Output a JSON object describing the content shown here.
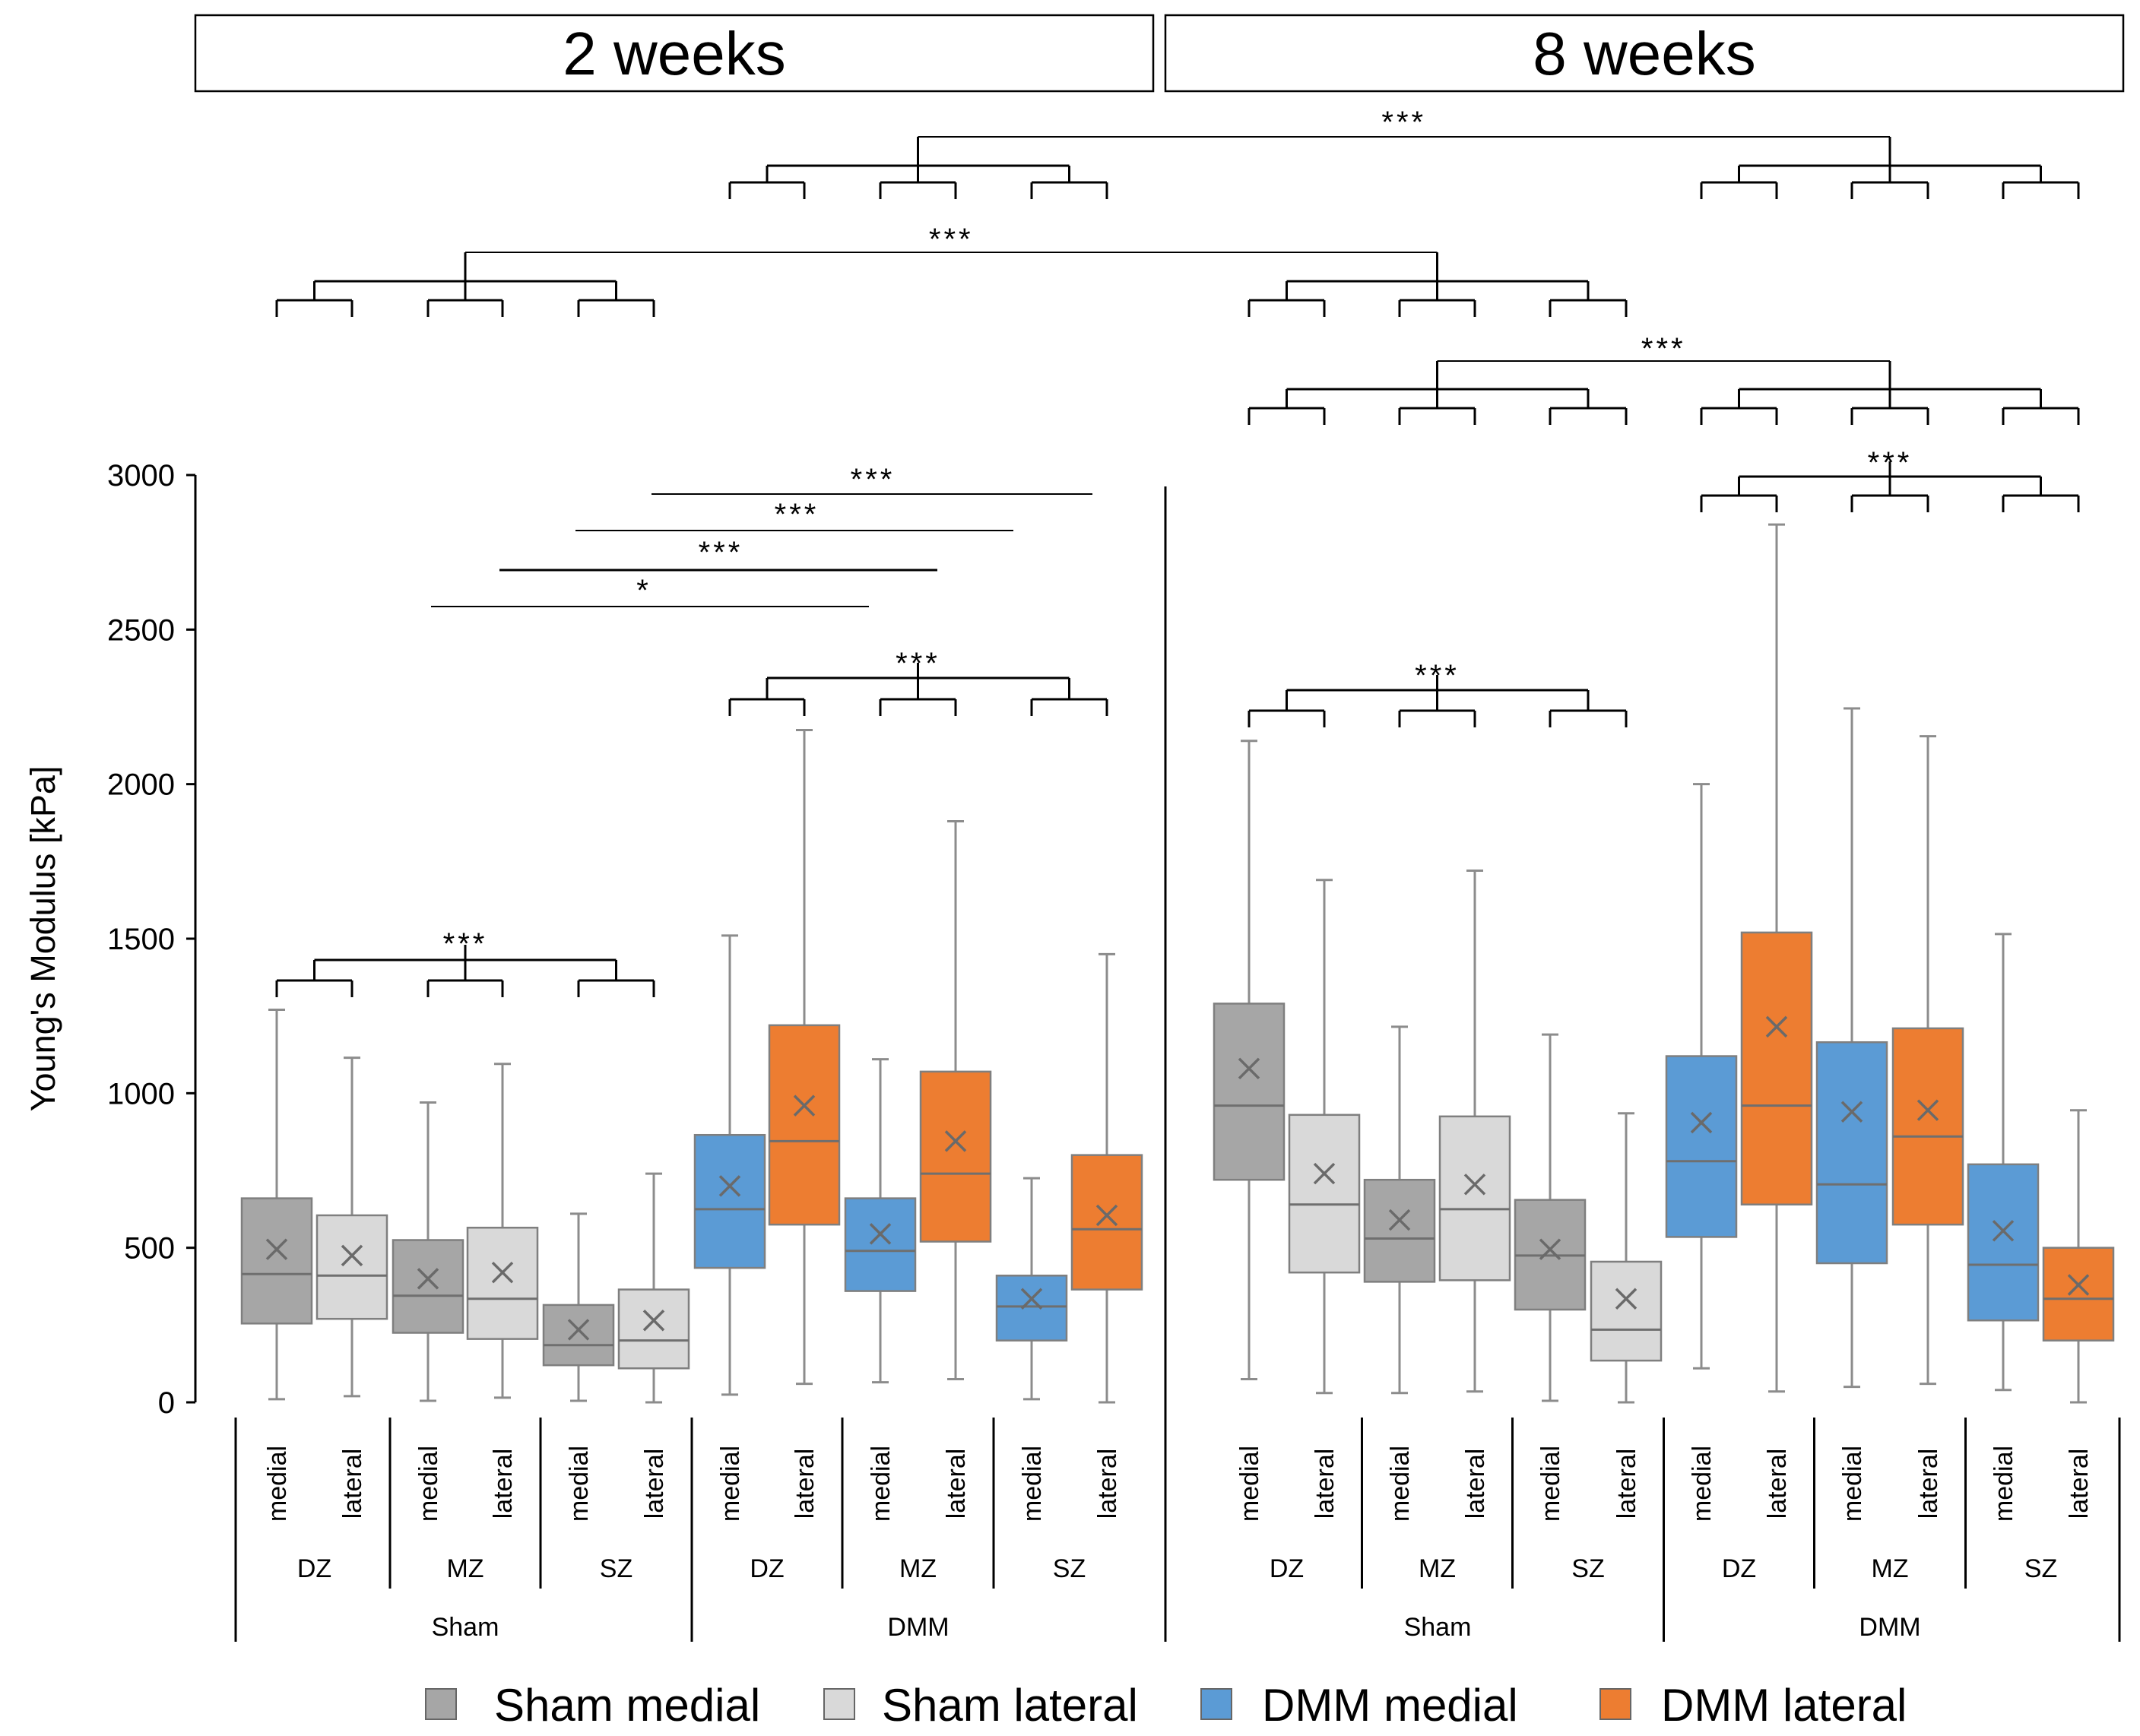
{
  "chart_data": {
    "type": "box",
    "ylabel": "Young's Modulus [kPa]",
    "ylim": [
      0,
      3000
    ],
    "yticks": [
      0,
      500,
      1000,
      1500,
      2000,
      2500,
      3000
    ],
    "panels": [
      "2 weeks",
      "8 weeks"
    ],
    "series_colors": {
      "Sham medial": "#a6a6a6",
      "Sham lateral": "#d9d9d9",
      "DMM medial": "#5b9bd5",
      "DMM lateral": "#ed7d31"
    },
    "legend": [
      {
        "label": "Sham medial",
        "color": "#a6a6a6"
      },
      {
        "label": "Sham lateral",
        "color": "#d9d9d9"
      },
      {
        "label": "DMM medial",
        "color": "#5b9bd5"
      },
      {
        "label": "DMM lateral",
        "color": "#ed7d31"
      }
    ],
    "boxes": [
      {
        "panel": "2 weeks",
        "group": "Sham",
        "zone": "DZ",
        "side": "medial",
        "series": "Sham medial",
        "min": 10,
        "q1": 255,
        "median": 415,
        "q3": 660,
        "max": 1270,
        "mean": 495
      },
      {
        "panel": "2 weeks",
        "group": "Sham",
        "zone": "DZ",
        "side": "lateral",
        "series": "Sham lateral",
        "min": 20,
        "q1": 270,
        "median": 410,
        "q3": 605,
        "max": 1115,
        "mean": 475
      },
      {
        "panel": "2 weeks",
        "group": "Sham",
        "zone": "MZ",
        "side": "medial",
        "series": "Sham medial",
        "min": 5,
        "q1": 225,
        "median": 345,
        "q3": 525,
        "max": 970,
        "mean": 400
      },
      {
        "panel": "2 weeks",
        "group": "Sham",
        "zone": "MZ",
        "side": "lateral",
        "series": "Sham lateral",
        "min": 15,
        "q1": 205,
        "median": 335,
        "q3": 565,
        "max": 1095,
        "mean": 420
      },
      {
        "panel": "2 weeks",
        "group": "Sham",
        "zone": "SZ",
        "side": "medial",
        "series": "Sham medial",
        "min": 5,
        "q1": 120,
        "median": 185,
        "q3": 315,
        "max": 610,
        "mean": 235
      },
      {
        "panel": "2 weeks",
        "group": "Sham",
        "zone": "SZ",
        "side": "lateral",
        "series": "Sham lateral",
        "min": 0,
        "q1": 110,
        "median": 200,
        "q3": 365,
        "max": 740,
        "mean": 265
      },
      {
        "panel": "2 weeks",
        "group": "DMM",
        "zone": "DZ",
        "side": "medial",
        "series": "DMM medial",
        "min": 25,
        "q1": 435,
        "median": 625,
        "q3": 865,
        "max": 1510,
        "mean": 700
      },
      {
        "panel": "2 weeks",
        "group": "DMM",
        "zone": "DZ",
        "side": "lateral",
        "series": "DMM lateral",
        "min": 60,
        "q1": 575,
        "median": 845,
        "q3": 1220,
        "max": 2175,
        "mean": 960
      },
      {
        "panel": "2 weeks",
        "group": "DMM",
        "zone": "MZ",
        "side": "medial",
        "series": "DMM medial",
        "min": 65,
        "q1": 360,
        "median": 490,
        "q3": 660,
        "max": 1110,
        "mean": 545
      },
      {
        "panel": "2 weeks",
        "group": "DMM",
        "zone": "MZ",
        "side": "lateral",
        "series": "DMM lateral",
        "min": 75,
        "q1": 520,
        "median": 740,
        "q3": 1070,
        "max": 1880,
        "mean": 845
      },
      {
        "panel": "2 weeks",
        "group": "DMM",
        "zone": "SZ",
        "side": "medial",
        "series": "DMM medial",
        "min": 10,
        "q1": 200,
        "median": 310,
        "q3": 410,
        "max": 725,
        "mean": 335
      },
      {
        "panel": "2 weeks",
        "group": "DMM",
        "zone": "SZ",
        "side": "lateral",
        "series": "DMM lateral",
        "min": 0,
        "q1": 365,
        "median": 560,
        "q3": 800,
        "max": 1450,
        "mean": 605
      },
      {
        "panel": "8 weeks",
        "group": "Sham",
        "zone": "DZ",
        "side": "medial",
        "series": "Sham medial",
        "min": 75,
        "q1": 720,
        "median": 960,
        "q3": 1290,
        "max": 2140,
        "mean": 1080
      },
      {
        "panel": "8 weeks",
        "group": "Sham",
        "zone": "DZ",
        "side": "lateral",
        "series": "Sham lateral",
        "min": 30,
        "q1": 420,
        "median": 640,
        "q3": 930,
        "max": 1690,
        "mean": 740
      },
      {
        "panel": "8 weeks",
        "group": "Sham",
        "zone": "MZ",
        "side": "medial",
        "series": "Sham medial",
        "min": 30,
        "q1": 390,
        "median": 530,
        "q3": 720,
        "max": 1215,
        "mean": 590
      },
      {
        "panel": "8 weeks",
        "group": "Sham",
        "zone": "MZ",
        "side": "lateral",
        "series": "Sham lateral",
        "min": 35,
        "q1": 395,
        "median": 625,
        "q3": 925,
        "max": 1720,
        "mean": 705
      },
      {
        "panel": "8 weeks",
        "group": "Sham",
        "zone": "SZ",
        "side": "medial",
        "series": "Sham medial",
        "min": 5,
        "q1": 300,
        "median": 475,
        "q3": 655,
        "max": 1190,
        "mean": 495
      },
      {
        "panel": "8 weeks",
        "group": "Sham",
        "zone": "SZ",
        "side": "lateral",
        "series": "Sham lateral",
        "min": 0,
        "q1": 135,
        "median": 235,
        "q3": 455,
        "max": 935,
        "mean": 335
      },
      {
        "panel": "8 weeks",
        "group": "DMM",
        "zone": "DZ",
        "side": "medial",
        "series": "DMM medial",
        "min": 110,
        "q1": 535,
        "median": 780,
        "q3": 1120,
        "max": 2000,
        "mean": 905
      },
      {
        "panel": "8 weeks",
        "group": "DMM",
        "zone": "DZ",
        "side": "lateral",
        "series": "DMM lateral",
        "min": 35,
        "q1": 640,
        "median": 960,
        "q3": 1520,
        "max": 2840,
        "mean": 1215
      },
      {
        "panel": "8 weeks",
        "group": "DMM",
        "zone": "MZ",
        "side": "medial",
        "series": "DMM medial",
        "min": 50,
        "q1": 450,
        "median": 705,
        "q3": 1165,
        "max": 2245,
        "mean": 940
      },
      {
        "panel": "8 weeks",
        "group": "DMM",
        "zone": "MZ",
        "side": "lateral",
        "series": "DMM lateral",
        "min": 60,
        "q1": 575,
        "median": 860,
        "q3": 1210,
        "max": 2155,
        "mean": 945
      },
      {
        "panel": "8 weeks",
        "group": "DMM",
        "zone": "SZ",
        "side": "medial",
        "series": "DMM medial",
        "min": 40,
        "q1": 265,
        "median": 445,
        "q3": 770,
        "max": 1515,
        "mean": 555
      },
      {
        "panel": "8 weeks",
        "group": "DMM",
        "zone": "SZ",
        "side": "lateral",
        "series": "DMM lateral",
        "min": 0,
        "q1": 200,
        "median": 335,
        "q3": 500,
        "max": 945,
        "mean": 380
      }
    ],
    "significance": [
      {
        "label": "***",
        "type": "group-bracket",
        "panel": "2 weeks",
        "group": "Sham"
      },
      {
        "label": "***",
        "type": "group-bracket",
        "panel": "2 weeks",
        "group": "DMM"
      },
      {
        "label": "*",
        "type": "pair-line",
        "from": "Sham MZ",
        "to": "DMM MZ"
      },
      {
        "label": "***",
        "type": "pair-line",
        "from": "Sham MZ",
        "to": "DMM MZ"
      },
      {
        "label": "***",
        "type": "pair-line",
        "from": "Sham SZ",
        "to": "DMM SZ"
      },
      {
        "label": "***",
        "type": "pair-line",
        "from": "Sham SZ",
        "to": "DMM SZ"
      },
      {
        "label": "***",
        "type": "group-bracket",
        "panel": "8 weeks",
        "group": "Sham"
      },
      {
        "label": "***",
        "type": "group-bracket",
        "panel": "8 weeks",
        "group": "DMM"
      },
      {
        "label": "***",
        "type": "time-bracket",
        "group": "DMM",
        "between": [
          "2 weeks",
          "8 weeks"
        ]
      },
      {
        "label": "***",
        "type": "time-bracket",
        "group": "Sham",
        "between": [
          "2 weeks",
          "8 weeks"
        ]
      },
      {
        "label": "***",
        "type": "treatment-bracket",
        "panel": "8 weeks",
        "between": [
          "Sham",
          "DMM"
        ]
      }
    ]
  }
}
